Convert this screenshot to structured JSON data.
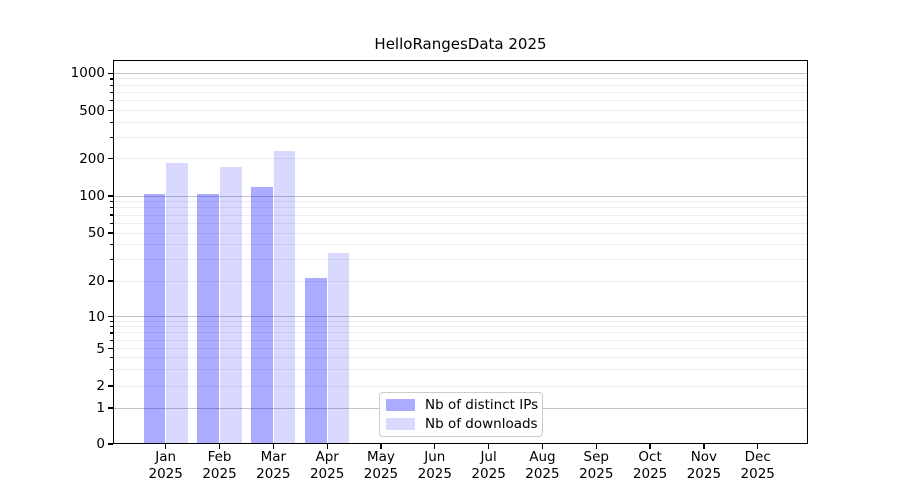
{
  "title": "HelloRangesData 2025",
  "chart_data": {
    "type": "bar",
    "title": "HelloRangesData 2025",
    "x_axis": {
      "categories": [
        "Jan",
        "Feb",
        "Mar",
        "Apr",
        "May",
        "Jun",
        "Jul",
        "Aug",
        "Sep",
        "Oct",
        "Nov",
        "Dec"
      ],
      "year_label": "2025"
    },
    "y_axis": {
      "scale": "symlog",
      "ticks": [
        0,
        1,
        2,
        5,
        10,
        20,
        50,
        100,
        200,
        500,
        1000
      ],
      "range": [
        0,
        1300
      ],
      "major_decades": [
        1,
        10,
        100,
        1000
      ],
      "minor_values": [
        3,
        4,
        6,
        7,
        8,
        9,
        30,
        40,
        60,
        70,
        80,
        90,
        300,
        400,
        600,
        700,
        800,
        900
      ]
    },
    "series": [
      {
        "name": "Nb of distinct IPs",
        "key": "distinct-ips",
        "color": "rgba(0,0,255,0.33)",
        "values": [
          103,
          103,
          119,
          21,
          0,
          0,
          0,
          0,
          0,
          0,
          0,
          0
        ]
      },
      {
        "name": "Nb of downloads",
        "key": "downloads",
        "color": "rgba(0,0,255,0.15)",
        "values": [
          185,
          170,
          232,
          34,
          0,
          0,
          0,
          0,
          0,
          0,
          0,
          0
        ]
      }
    ],
    "grid": true,
    "legend": {
      "position": "inside-bottom-center",
      "entries": [
        "Nb of distinct IPs",
        "Nb of downloads"
      ]
    }
  },
  "colors": {
    "bar_distinct_ips": "rgba(0,0,255,0.33)",
    "bar_downloads": "rgba(0,0,255,0.15)",
    "grid_major": "#c4c4c4",
    "grid_minor": "#ededed",
    "axis": "#000000",
    "background": "#ffffff"
  }
}
